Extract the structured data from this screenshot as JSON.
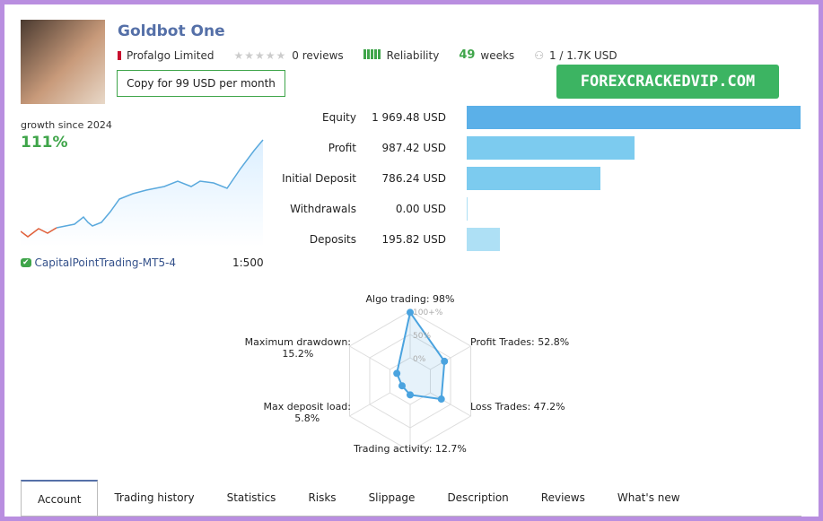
{
  "header": {
    "title": "Goldbot One",
    "author": "Profalgo Limited",
    "reviews": "0 reviews",
    "reliability": "Reliability",
    "weeks_num": "49",
    "weeks_label": "weeks",
    "subscribers": "1 / 1.7K USD",
    "copy_button": "Copy for 99 USD per month"
  },
  "watermark": "FOREXCRACKEDVIP.COM",
  "growth": {
    "label": "growth since 2024",
    "value": "111%",
    "server": "CapitalPointTrading-MT5-4",
    "leverage": "1:500"
  },
  "stats": [
    {
      "label": "Equity",
      "value": "1 969.48 USD",
      "amount": 1969.48,
      "color": "#5bb0e8"
    },
    {
      "label": "Profit",
      "value": "987.42 USD",
      "amount": 987.42,
      "color": "#7ccbef"
    },
    {
      "label": "Initial Deposit",
      "value": "786.24 USD",
      "amount": 786.24,
      "color": "#7ccbef"
    },
    {
      "label": "Withdrawals",
      "value": "0.00 USD",
      "amount": 0,
      "color": "#aee0f5"
    },
    {
      "label": "Deposits",
      "value": "195.82 USD",
      "amount": 195.82,
      "color": "#aee0f5"
    }
  ],
  "radar": {
    "labels": [
      "Algo trading: 98%",
      "Profit Trades: 52.8%",
      "Loss Trades: 47.2%",
      "Trading activity: 12.7%",
      "Max deposit load:",
      "Maximum drawdown:"
    ],
    "sub": [
      "",
      "",
      "",
      "",
      "5.8%",
      "15.2%"
    ],
    "values": [
      98,
      52.8,
      47.2,
      12.7,
      5.8,
      15.2
    ],
    "rings": [
      "100+%",
      "50%",
      "0%"
    ]
  },
  "tabs": [
    "Account",
    "Trading history",
    "Statistics",
    "Risks",
    "Slippage",
    "Description",
    "Reviews",
    "What's new"
  ]
}
